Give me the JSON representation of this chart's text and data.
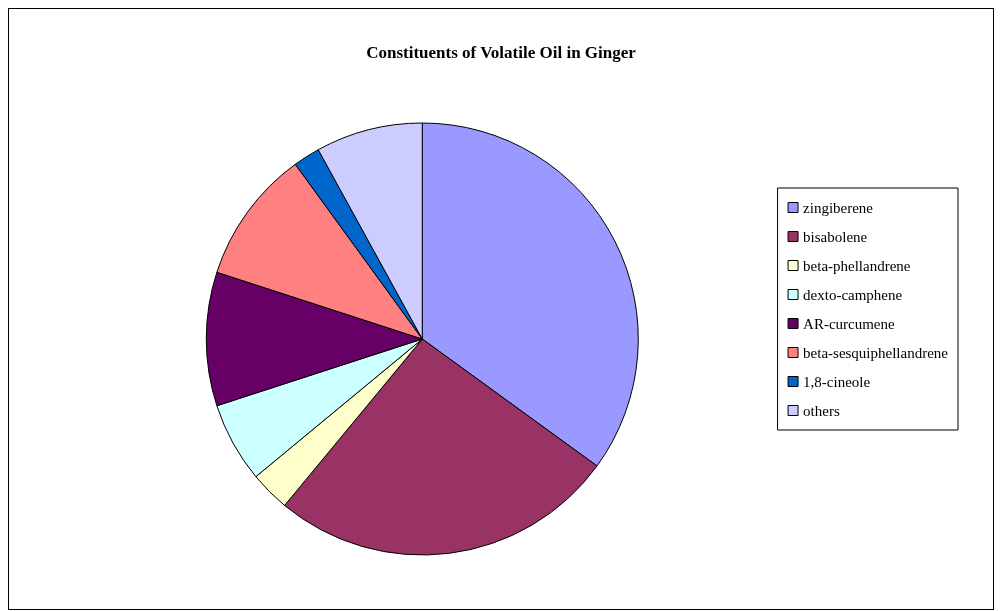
{
  "chart_data": {
    "type": "pie",
    "title": "Constituents of Volatile Oil in Ginger",
    "categories": [
      "zingiberene",
      "bisabolene",
      "beta-phellandrene",
      "dexto-camphene",
      "AR-curcumene",
      "beta-sesquiphellandrene",
      "1,8-cineole",
      "others"
    ],
    "values": [
      35,
      26,
      3,
      6,
      10,
      10,
      2,
      8
    ],
    "colors": [
      "#9999ff",
      "#993366",
      "#ffffcc",
      "#ccffff",
      "#660066",
      "#ff8080",
      "#0066cc",
      "#ccccff"
    ],
    "legend": "right"
  }
}
